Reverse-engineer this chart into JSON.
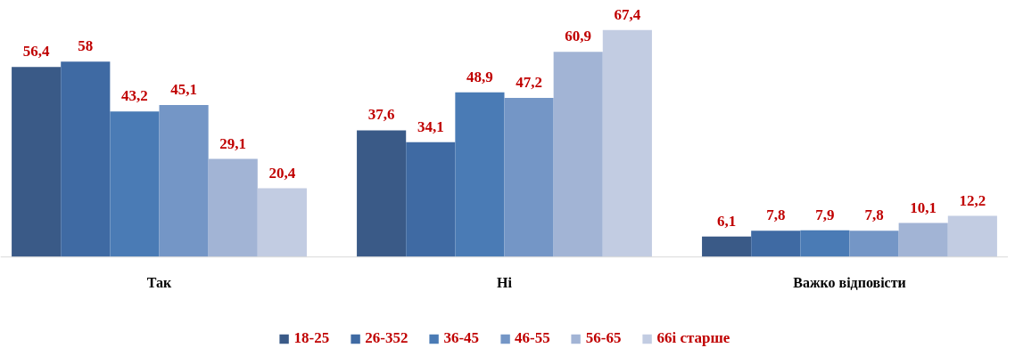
{
  "chart_data": {
    "type": "bar",
    "categories": [
      "Так",
      "Ні",
      "Важко відповісти"
    ],
    "series": [
      {
        "name": "18-25",
        "color": "#3a5a87",
        "values": [
          56.4,
          37.6,
          6.1
        ],
        "value_labels": [
          "56,4",
          "37,6",
          "6,1"
        ]
      },
      {
        "name": "26-352",
        "color": "#3f6aa3",
        "values": [
          58,
          34.1,
          7.8
        ],
        "value_labels": [
          "58",
          "34,1",
          "7,8"
        ]
      },
      {
        "name": "36-45",
        "color": "#4a7bb5",
        "values": [
          43.2,
          48.9,
          7.9
        ],
        "value_labels": [
          "43,2",
          "48,9",
          "7,9"
        ]
      },
      {
        "name": "46-55",
        "color": "#7496c6",
        "values": [
          45.1,
          47.2,
          7.8
        ],
        "value_labels": [
          "45,1",
          "47,2",
          "7,8"
        ]
      },
      {
        "name": "56-65",
        "color": "#a2b4d5",
        "values": [
          29.1,
          60.9,
          10.1
        ],
        "value_labels": [
          "29,1",
          "60,9",
          "10,1"
        ]
      },
      {
        "name": "66і старше",
        "color": "#c2cce2",
        "values": [
          20.4,
          67.4,
          12.2
        ],
        "value_labels": [
          "20,4",
          "67,4",
          "12,2"
        ]
      }
    ],
    "legend": "bottom"
  }
}
